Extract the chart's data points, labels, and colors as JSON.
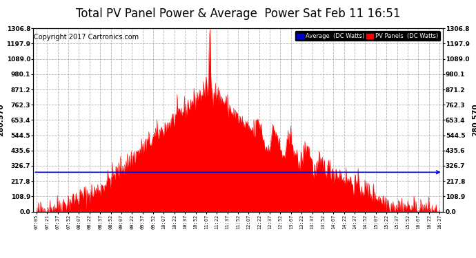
{
  "title": "Total PV Panel Power & Average  Power Sat Feb 11 16:51",
  "copyright": "Copyright 2017 Cartronics.com",
  "average_value": 280.57,
  "y_max": 1306.8,
  "y_min": 0.0,
  "y_ticks": [
    0.0,
    108.9,
    217.8,
    326.7,
    435.6,
    544.5,
    653.4,
    762.3,
    871.2,
    980.1,
    1089.0,
    1197.9,
    1306.8
  ],
  "x_labels": [
    "07:05",
    "07:21",
    "07:37",
    "07:52",
    "08:07",
    "08:22",
    "08:37",
    "08:52",
    "09:07",
    "09:22",
    "09:37",
    "09:52",
    "10:07",
    "10:22",
    "10:37",
    "10:52",
    "11:07",
    "11:22",
    "11:37",
    "11:52",
    "12:07",
    "12:22",
    "12:37",
    "12:52",
    "13:07",
    "13:22",
    "13:37",
    "13:52",
    "14:07",
    "14:22",
    "14:37",
    "14:52",
    "15:07",
    "15:22",
    "15:37",
    "15:52",
    "16:07",
    "16:22",
    "16:37"
  ],
  "fill_color": "#FF0000",
  "line_color": "#FF0000",
  "average_line_color": "#0000CC",
  "background_color": "#FFFFFF",
  "grid_color": "#AAAAAA",
  "legend_avg_bg": "#0000CC",
  "legend_pv_bg": "#FF0000",
  "title_fontsize": 12,
  "avg_label": "280.570",
  "copyright_fontsize": 7
}
